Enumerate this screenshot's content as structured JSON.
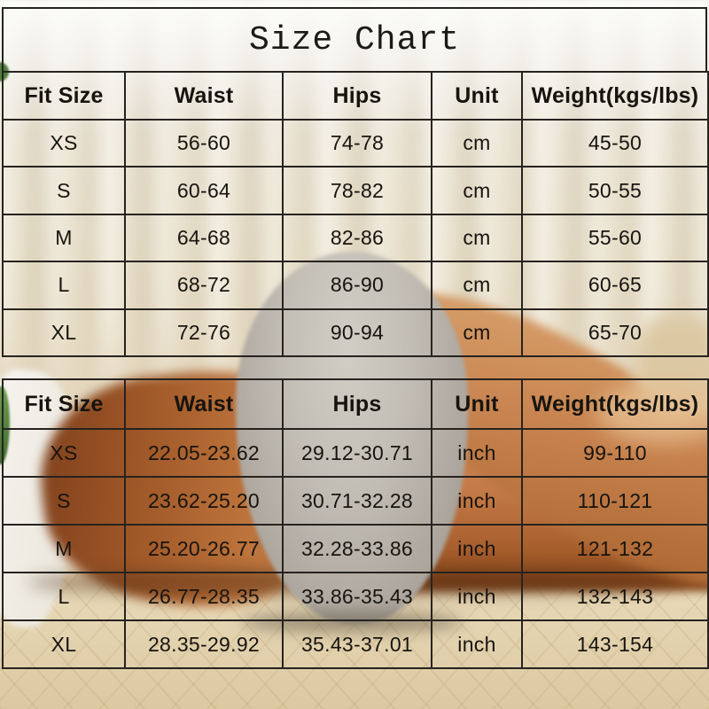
{
  "title": "Size Chart",
  "colors": {
    "border": "#26231f",
    "text": "#17140f",
    "curtain_cream": "#e8dfc9",
    "blanket_tan": "#dcc9a4",
    "underwear_gray": "#b2ada4",
    "skin_tan": "#b96f38"
  },
  "chart_data": [
    {
      "type": "table",
      "title": "Size Chart",
      "unit": "cm",
      "columns": [
        "Fit Size",
        "Waist",
        "Hips",
        "Unit",
        "Weight(kgs/lbs)"
      ],
      "rows": [
        [
          "XS",
          "56-60",
          "74-78",
          "cm",
          "45-50"
        ],
        [
          "S",
          "60-64",
          "78-82",
          "cm",
          "50-55"
        ],
        [
          "M",
          "64-68",
          "82-86",
          "cm",
          "55-60"
        ],
        [
          "L",
          "68-72",
          "86-90",
          "cm",
          "60-65"
        ],
        [
          "XL",
          "72-76",
          "90-94",
          "cm",
          "65-70"
        ]
      ]
    },
    {
      "type": "table",
      "unit": "inch",
      "columns": [
        "Fit Size",
        "Waist",
        "Hips",
        "Unit",
        "Weight(kgs/lbs)"
      ],
      "rows": [
        [
          "XS",
          "22.05-23.62",
          "29.12-30.71",
          "inch",
          "99-110"
        ],
        [
          "S",
          "23.62-25.20",
          "30.71-32.28",
          "inch",
          "110-121"
        ],
        [
          "M",
          "25.20-26.77",
          "32.28-33.86",
          "inch",
          "121-132"
        ],
        [
          "L",
          "26.77-28.35",
          "33.86-35.43",
          "inch",
          "132-143"
        ],
        [
          "XL",
          "28.35-29.92",
          "35.43-37.01",
          "inch",
          "143-154"
        ]
      ]
    }
  ]
}
